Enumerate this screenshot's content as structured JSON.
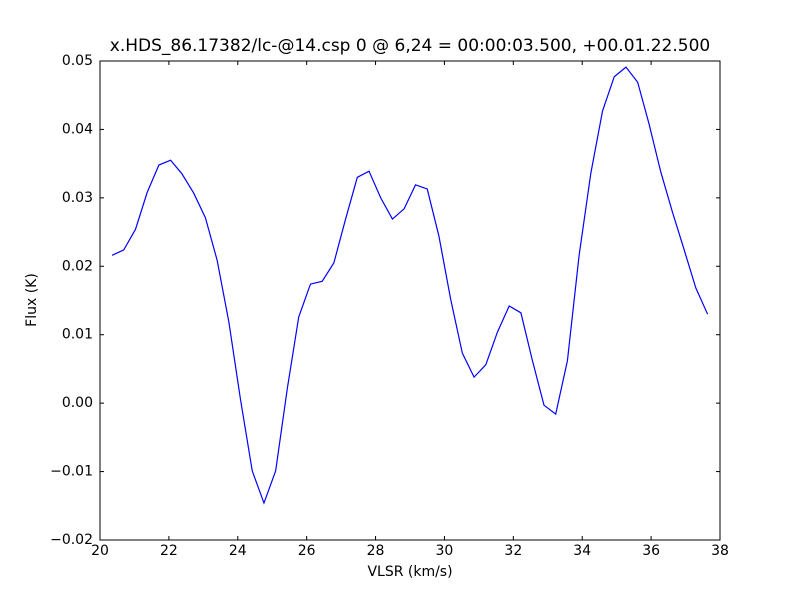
{
  "chart_data": {
    "type": "line",
    "title": "x.HDS_86.17382/lc-@14.csp 0 @ 6,24 = 00:00:03.500, +00.01.22.500",
    "xlabel": "VLSR (km/s)",
    "ylabel": "Flux (K)",
    "color": "#0000ff",
    "grid": false,
    "x": [
      20.35,
      20.69,
      21.03,
      21.37,
      21.71,
      22.05,
      22.38,
      22.72,
      23.06,
      23.4,
      23.74,
      24.08,
      24.42,
      24.76,
      25.1,
      25.44,
      25.77,
      26.11,
      26.45,
      26.79,
      27.13,
      27.47,
      27.81,
      28.15,
      28.49,
      28.83,
      29.16,
      29.5,
      29.84,
      30.18,
      30.52,
      30.86,
      31.2,
      31.54,
      31.88,
      32.22,
      32.55,
      32.89,
      33.23,
      33.57,
      33.91,
      34.25,
      34.59,
      34.93,
      35.27,
      35.61,
      35.94,
      36.28,
      36.62,
      36.96,
      37.3,
      37.64
    ],
    "values": [
      0.0216,
      0.0224,
      0.0254,
      0.0308,
      0.0348,
      0.0355,
      0.0335,
      0.0307,
      0.0271,
      0.0209,
      0.0119,
      0.0005,
      -0.0099,
      -0.0146,
      -0.0099,
      0.0022,
      0.0126,
      0.0174,
      0.0178,
      0.0205,
      0.0269,
      0.033,
      0.0339,
      0.03,
      0.0269,
      0.0284,
      0.0319,
      0.0313,
      0.0244,
      0.0152,
      0.0073,
      0.0038,
      0.0056,
      0.0104,
      0.0142,
      0.0132,
      0.0063,
      -0.0003,
      -0.0016,
      0.0062,
      0.0216,
      0.0336,
      0.0427,
      0.0477,
      0.0491,
      0.0469,
      0.0408,
      0.0338,
      0.0279,
      0.0224,
      0.0168,
      0.013
    ],
    "xlim": [
      20,
      38
    ],
    "xticks": [
      20,
      22,
      24,
      26,
      28,
      30,
      32,
      34,
      36,
      38
    ],
    "ylim": [
      -0.02,
      0.05
    ],
    "yticks": [
      {
        "value": -0.02,
        "label": "−0.02"
      },
      {
        "value": -0.01,
        "label": "−0.01"
      },
      {
        "value": 0,
        "label": "0.00"
      },
      0.01,
      0.02,
      0.03,
      0.04,
      0.05
    ]
  }
}
